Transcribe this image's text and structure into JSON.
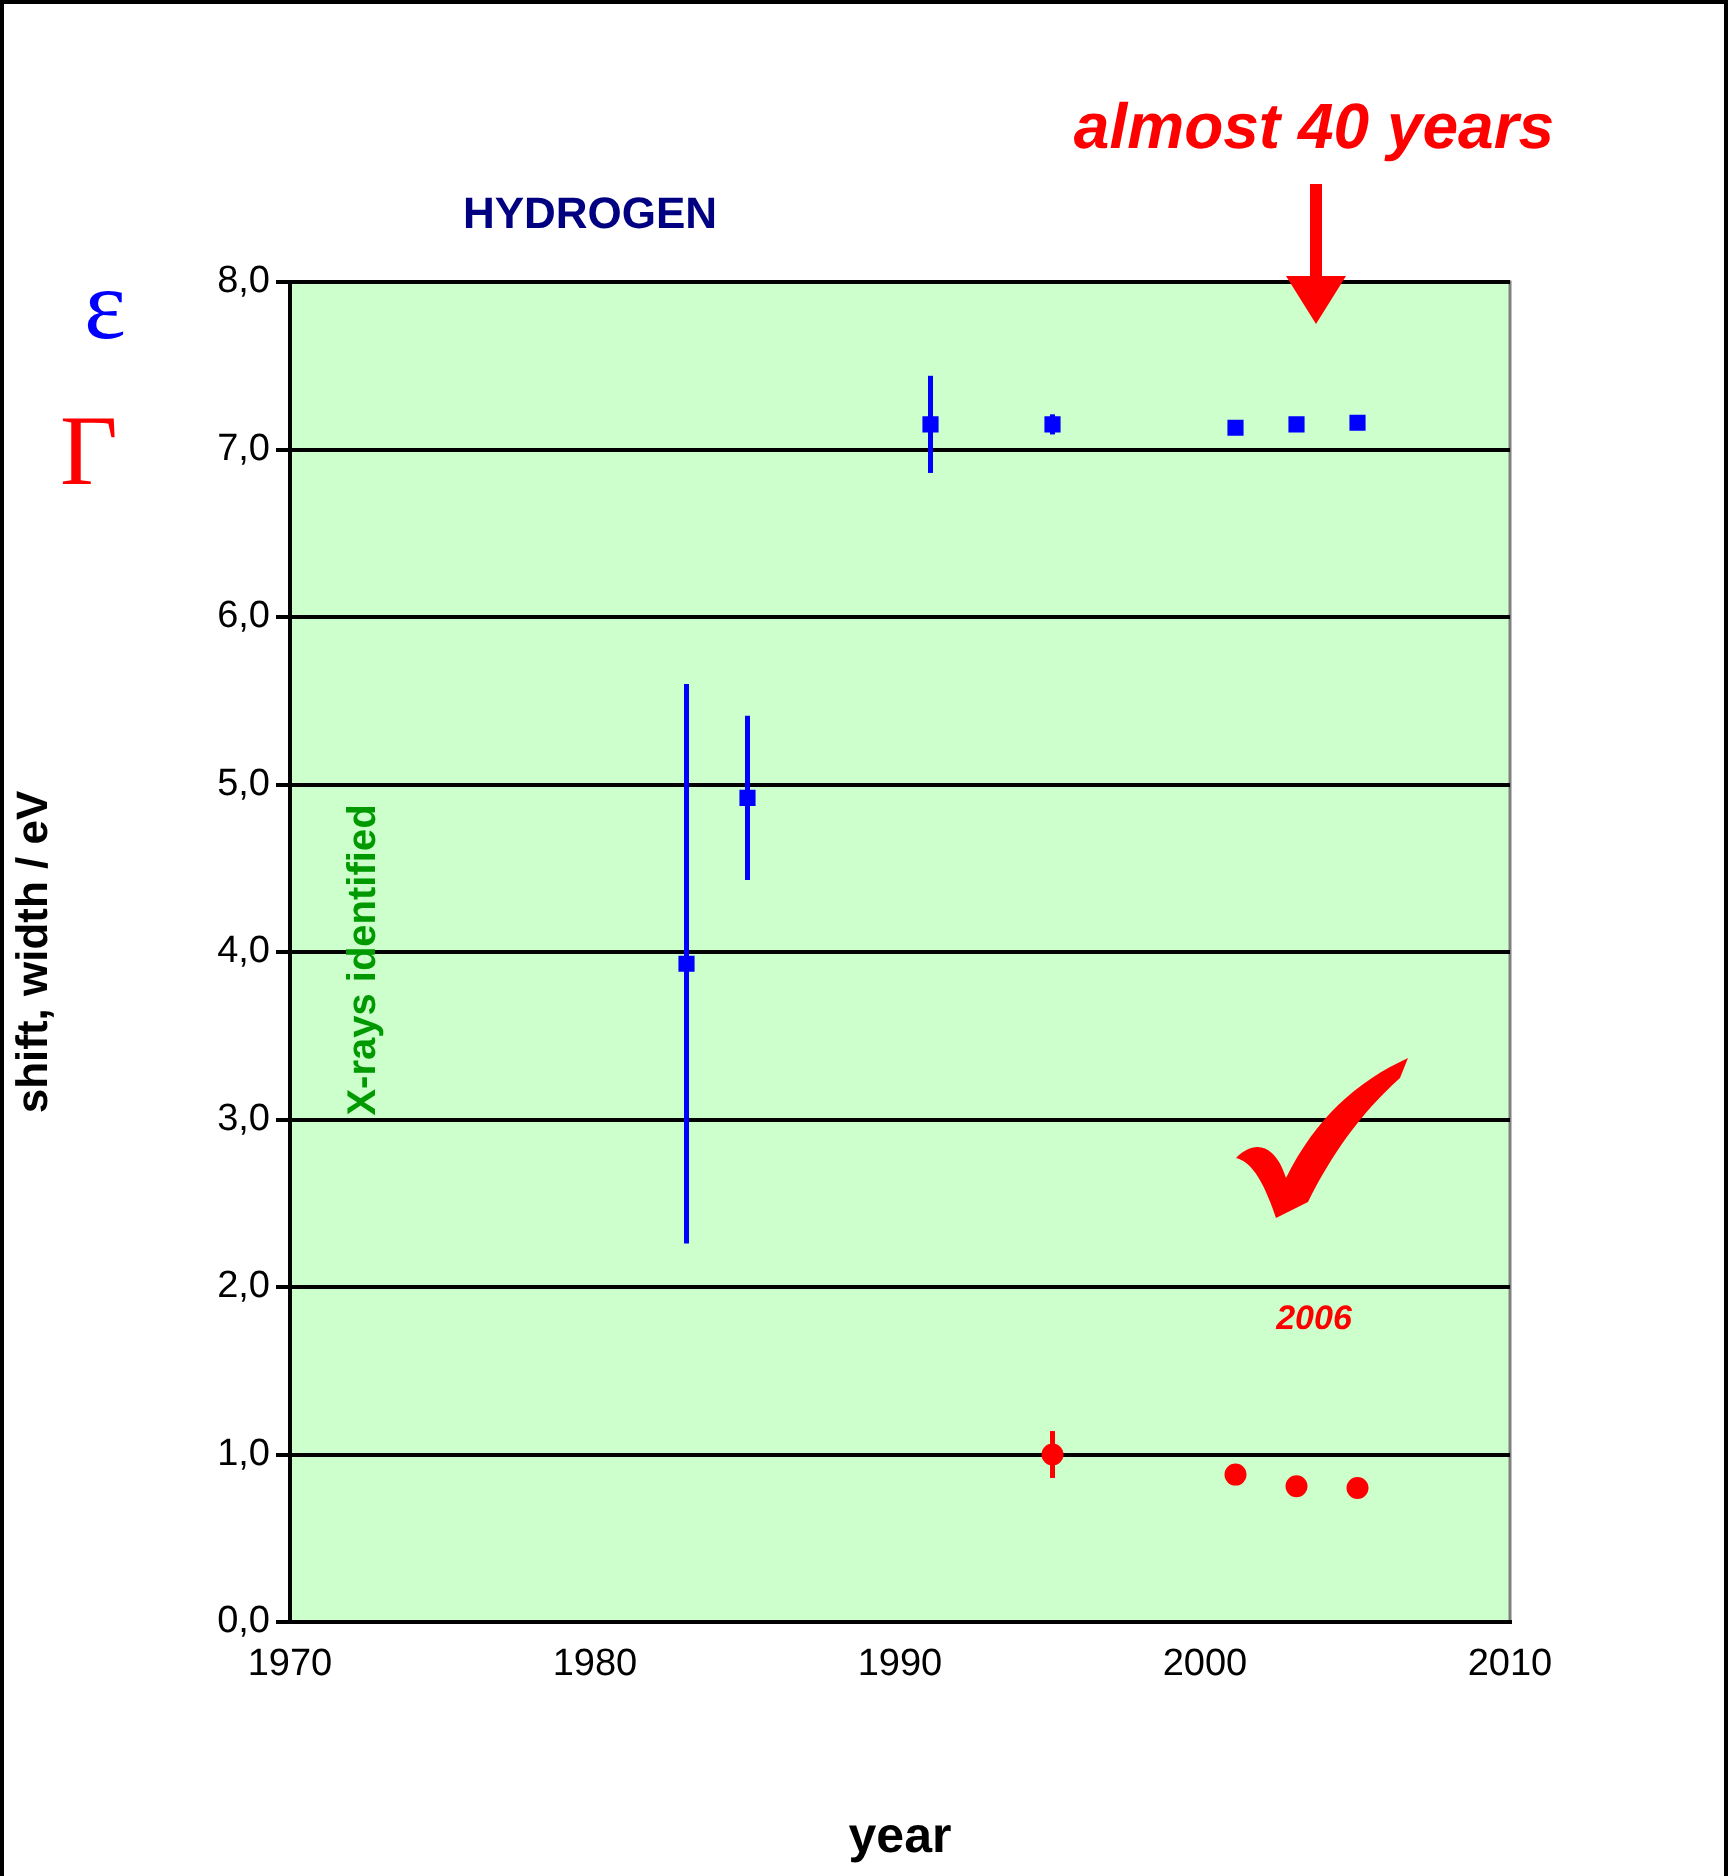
{
  "chart_data": {
    "type": "scatter",
    "title": "HYDROGEN",
    "xlabel": "year",
    "ylabel": "shift, width / eV",
    "series": [
      {
        "name": "ε",
        "color": "#0000ff",
        "marker": "square",
        "x": [
          1983,
          1985,
          1991,
          1995,
          2001,
          2003,
          2005
        ],
        "values": [
          3.93,
          4.92,
          7.15,
          7.15,
          7.13,
          7.15,
          7.16
        ],
        "errors": [
          1.67,
          0.49,
          0.29,
          0.06,
          0.03,
          null,
          null
        ]
      },
      {
        "name": "Γ",
        "color": "#ff0000",
        "marker": "circle",
        "x": [
          1995,
          2001,
          2003,
          2005
        ],
        "values": [
          1.0,
          0.88,
          0.81,
          0.8
        ],
        "errors": [
          0.14,
          null,
          null,
          null
        ]
      }
    ],
    "xlim": [
      1970,
      2010
    ],
    "xticks": [
      1970,
      1980,
      1990,
      2000,
      2010
    ],
    "ylim": [
      0,
      8
    ],
    "yticks": [
      {
        "value": 0,
        "label": "0,0"
      },
      {
        "value": 1,
        "label": "1,0"
      },
      {
        "value": 2,
        "label": "2,0"
      },
      {
        "value": 3,
        "label": "3,0"
      },
      {
        "value": 4,
        "label": "4,0"
      },
      {
        "value": 5,
        "label": "5,0"
      },
      {
        "value": 6,
        "label": "6,0"
      },
      {
        "value": 7,
        "label": "7,0"
      },
      {
        "value": 8,
        "label": "8,0"
      }
    ],
    "grid": "y",
    "legend": false,
    "annotations": [
      "almost 40 years",
      "X-rays identified",
      "2006"
    ]
  }
}
